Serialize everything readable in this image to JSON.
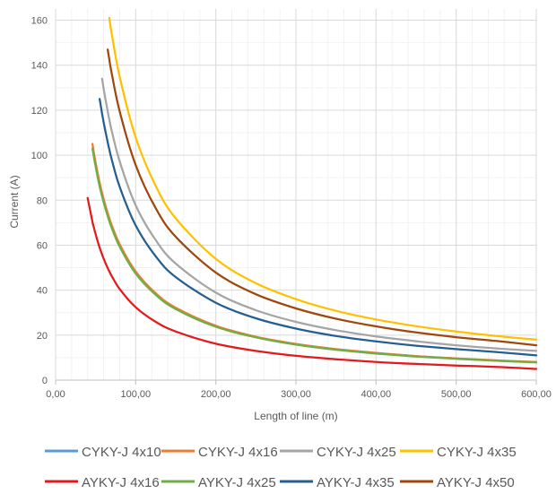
{
  "chart_data": {
    "type": "line",
    "title": "",
    "xlabel": "Length of line (m)",
    "ylabel": "Current (A)",
    "xlim": [
      0,
      600
    ],
    "ylim": [
      0,
      165
    ],
    "x_ticks": [
      0,
      100,
      200,
      300,
      400,
      500,
      600
    ],
    "x_tick_labels": [
      "0,00",
      "100,00",
      "200,00",
      "300,00",
      "400,00",
      "500,00",
      "600,00"
    ],
    "y_ticks": [
      0,
      20,
      40,
      60,
      80,
      100,
      120,
      140,
      160
    ],
    "y_tick_labels": [
      "0",
      "20",
      "40",
      "60",
      "80",
      "100",
      "120",
      "140",
      "160"
    ],
    "grid": true,
    "legend_position": "bottom",
    "x": [
      40,
      46,
      47,
      48,
      50,
      55,
      58,
      60,
      65,
      67,
      70,
      80,
      100,
      125,
      150,
      200,
      250,
      300,
      350,
      400,
      450,
      500,
      550,
      600
    ],
    "series": [
      {
        "name": "CYKY-J 4x10",
        "color": "#5b9bd5",
        "values": [
          null,
          null,
          102.1,
          100.0,
          96.0,
          87.3,
          82.8,
          80.0,
          73.8,
          71.6,
          68.6,
          60.0,
          48.0,
          38.4,
          32.0,
          24.0,
          19.2,
          16.0,
          13.7,
          12.0,
          10.7,
          9.6,
          8.7,
          8.0
        ]
      },
      {
        "name": "CYKY-J 4x16",
        "color": "#ed7d31",
        "values": [
          null,
          105.0,
          102.8,
          100.6,
          96.6,
          87.8,
          83.3,
          80.5,
          74.3,
          72.1,
          69.0,
          60.4,
          48.3,
          38.6,
          32.2,
          24.2,
          19.3,
          16.1,
          13.8,
          12.1,
          10.7,
          9.7,
          8.8,
          8.1
        ]
      },
      {
        "name": "CYKY-J 4x25",
        "color": "#a5a5a5",
        "values": [
          null,
          null,
          null,
          null,
          null,
          null,
          134.0,
          129.5,
          119.5,
          115.9,
          111.0,
          97.2,
          77.7,
          62.2,
          51.8,
          38.9,
          31.1,
          25.9,
          22.2,
          19.4,
          17.3,
          15.5,
          14.1,
          13.0
        ]
      },
      {
        "name": "CYKY-J 4x35",
        "color": "#ffc000",
        "values": [
          null,
          null,
          null,
          null,
          null,
          null,
          null,
          null,
          null,
          161.0,
          154.1,
          134.8,
          107.9,
          86.3,
          71.9,
          53.9,
          43.1,
          36.0,
          30.8,
          27.0,
          24.0,
          21.6,
          19.6,
          18.0
        ]
      },
      {
        "name": "AYKY-J 4x16",
        "color": "#e31a1c",
        "values": [
          81.0,
          70.4,
          68.9,
          67.5,
          64.8,
          58.9,
          55.9,
          54.0,
          49.8,
          48.4,
          46.3,
          40.5,
          32.4,
          25.9,
          21.6,
          16.2,
          13.0,
          10.8,
          9.3,
          8.1,
          7.2,
          6.5,
          5.9,
          5.0
        ]
      },
      {
        "name": "AYKY-J 4x25",
        "color": "#70ad47",
        "values": [
          null,
          103.0,
          100.8,
          98.7,
          94.8,
          86.1,
          81.7,
          79.0,
          72.9,
          70.7,
          67.7,
          59.3,
          47.4,
          37.9,
          31.6,
          23.7,
          19.0,
          15.8,
          13.5,
          11.8,
          10.5,
          9.5,
          8.6,
          7.9
        ]
      },
      {
        "name": "AYKY-J 4x35",
        "color": "#255e91",
        "values": [
          null,
          null,
          null,
          null,
          null,
          125.0,
          118.5,
          114.6,
          105.8,
          102.6,
          98.2,
          85.9,
          68.8,
          55.0,
          45.8,
          34.4,
          27.5,
          22.9,
          19.6,
          17.2,
          15.3,
          13.8,
          12.5,
          11.0
        ]
      },
      {
        "name": "AYKY-J 4x50",
        "color": "#9e480e",
        "values": [
          null,
          null,
          null,
          null,
          null,
          null,
          null,
          null,
          147.0,
          142.6,
          136.5,
          119.4,
          95.6,
          76.4,
          63.7,
          47.8,
          38.2,
          31.9,
          27.3,
          23.9,
          21.2,
          19.1,
          17.4,
          15.5
        ]
      }
    ]
  }
}
